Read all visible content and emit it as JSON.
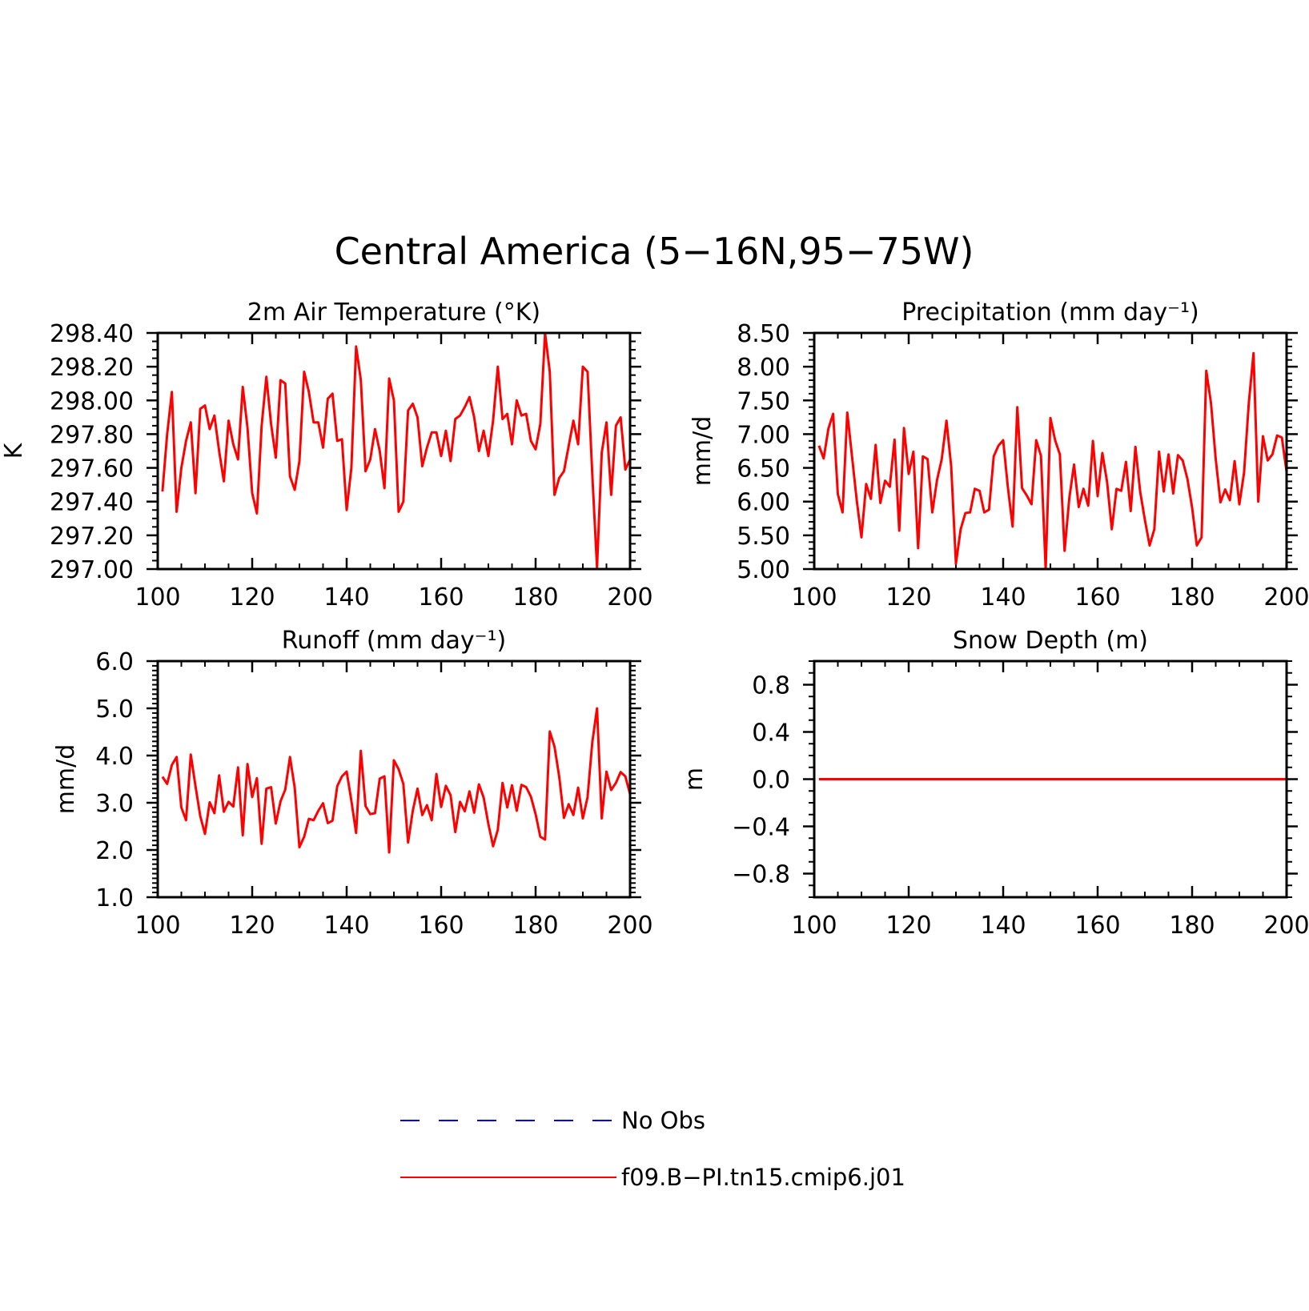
{
  "figure_title": "Central America (5−16N,95−75W)",
  "legend": {
    "placement": "bottom-center",
    "entries": [
      {
        "label": "No Obs",
        "color": "#0000ff",
        "style": "dashed"
      },
      {
        "label": "f09.B−PI.tn15.cmip6.j01",
        "color": "#ff0000",
        "style": "solid"
      }
    ]
  },
  "chart_data": [
    {
      "type": "line",
      "title": "2m Air Temperature (°K)",
      "xlabel": "",
      "ylabel": "K",
      "xlim": [
        100,
        200
      ],
      "ylim": [
        297.0,
        298.4
      ],
      "x_ticks": [
        "100",
        "120",
        "140",
        "160",
        "180",
        "200"
      ],
      "y_ticks": [
        "297.00",
        "297.20",
        "297.40",
        "297.60",
        "297.80",
        "298.00",
        "298.20",
        "298.40"
      ],
      "grid": false,
      "series": [
        {
          "color": "#ff0000",
          "x_start": 101,
          "x_step": 1,
          "values": [
            297.46,
            297.8,
            298.05,
            297.34,
            297.6,
            297.76,
            297.87,
            297.45,
            297.95,
            297.97,
            297.83,
            297.91,
            297.7,
            297.52,
            297.88,
            297.74,
            297.65,
            298.08,
            297.84,
            297.45,
            297.33,
            297.85,
            298.14,
            297.86,
            297.66,
            298.12,
            298.1,
            297.55,
            297.47,
            297.64,
            298.17,
            298.05,
            297.87,
            297.87,
            297.72,
            298.01,
            298.04,
            297.76,
            297.77,
            297.35,
            297.6,
            298.32,
            298.12,
            297.58,
            297.65,
            297.83,
            297.7,
            297.48,
            298.13,
            298.0,
            297.34,
            297.4,
            297.94,
            297.98,
            297.9,
            297.61,
            297.72,
            297.81,
            297.81,
            297.67,
            297.82,
            297.64,
            297.89,
            297.91,
            297.96,
            298.02,
            297.9,
            297.7,
            297.82,
            297.67,
            297.88,
            298.2,
            297.89,
            297.92,
            297.74,
            298.0,
            297.91,
            297.92,
            297.76,
            297.71,
            297.86,
            298.4,
            298.17,
            297.44,
            297.54,
            297.58,
            297.73,
            297.88,
            297.74,
            298.2,
            298.17,
            297.56,
            297.01,
            297.69,
            297.87,
            297.44,
            297.85,
            297.9,
            297.59,
            297.65
          ]
        }
      ]
    },
    {
      "type": "line",
      "title": "Precipitation (mm day⁻¹)",
      "xlabel": "",
      "ylabel": "mm/d",
      "xlim": [
        100,
        200
      ],
      "ylim": [
        5.0,
        8.5
      ],
      "x_ticks": [
        "100",
        "120",
        "140",
        "160",
        "180",
        "200"
      ],
      "y_ticks": [
        "5.00",
        "5.50",
        "6.00",
        "6.50",
        "7.00",
        "7.50",
        "8.00",
        "8.50"
      ],
      "grid": false,
      "series": [
        {
          "color": "#ff0000",
          "x_start": 101,
          "x_step": 1,
          "values": [
            6.83,
            6.64,
            7.08,
            7.3,
            6.11,
            5.84,
            7.32,
            6.67,
            6.02,
            5.47,
            6.26,
            6.04,
            6.84,
            5.98,
            6.31,
            6.22,
            6.92,
            5.57,
            7.09,
            6.41,
            6.74,
            5.31,
            6.67,
            6.63,
            5.84,
            6.32,
            6.63,
            7.2,
            6.52,
            5.08,
            5.59,
            5.83,
            5.84,
            6.19,
            6.16,
            5.84,
            5.88,
            6.67,
            6.83,
            6.91,
            6.21,
            5.63,
            7.4,
            6.2,
            6.09,
            5.96,
            6.91,
            6.68,
            5.0,
            7.24,
            6.91,
            6.7,
            5.27,
            6.05,
            6.55,
            5.92,
            6.19,
            5.94,
            6.9,
            6.08,
            6.72,
            6.29,
            5.59,
            6.19,
            6.16,
            6.59,
            5.86,
            6.81,
            6.15,
            5.73,
            5.35,
            5.59,
            6.74,
            6.15,
            6.7,
            6.12,
            6.69,
            6.61,
            6.34,
            5.91,
            5.35,
            5.47,
            7.94,
            7.46,
            6.63,
            5.99,
            6.18,
            6.02,
            6.6,
            5.96,
            6.43,
            7.46,
            8.2,
            6.0,
            6.97,
            6.61,
            6.7,
            6.98,
            6.95,
            6.44
          ]
        }
      ]
    },
    {
      "type": "line",
      "title": "Runoff (mm day⁻¹)",
      "xlabel": "",
      "ylabel": "mm/d",
      "xlim": [
        100,
        200
      ],
      "ylim": [
        1.0,
        6.0
      ],
      "x_ticks": [
        "100",
        "120",
        "140",
        "160",
        "180",
        "200"
      ],
      "y_ticks": [
        "1.0",
        "2.0",
        "3.0",
        "4.0",
        "5.0",
        "6.0"
      ],
      "grid": false,
      "series": [
        {
          "color": "#ff0000",
          "x_start": 101,
          "x_step": 1,
          "values": [
            3.55,
            3.4,
            3.8,
            3.97,
            2.9,
            2.63,
            4.02,
            3.35,
            2.72,
            2.34,
            3.01,
            2.78,
            3.58,
            2.81,
            3.02,
            2.92,
            3.75,
            2.31,
            3.82,
            3.12,
            3.52,
            2.13,
            3.3,
            3.33,
            2.56,
            3.03,
            3.28,
            3.97,
            3.32,
            2.06,
            2.28,
            2.66,
            2.63,
            2.83,
            2.99,
            2.57,
            2.62,
            3.35,
            3.56,
            3.66,
            3.04,
            2.36,
            4.1,
            2.93,
            2.76,
            2.78,
            3.51,
            3.56,
            1.95,
            3.9,
            3.71,
            3.4,
            2.16,
            2.83,
            3.3,
            2.74,
            2.95,
            2.63,
            3.61,
            2.91,
            3.36,
            3.16,
            2.38,
            3.02,
            2.82,
            3.24,
            2.79,
            3.39,
            3.11,
            2.55,
            2.08,
            2.43,
            3.42,
            2.9,
            3.37,
            2.83,
            3.38,
            3.33,
            3.13,
            2.76,
            2.28,
            2.22,
            4.51,
            4.19,
            3.55,
            2.68,
            2.97,
            2.74,
            3.32,
            2.67,
            3.12,
            4.28,
            5.0,
            2.67,
            3.66,
            3.27,
            3.42,
            3.65,
            3.56,
            3.18
          ]
        }
      ]
    },
    {
      "type": "line",
      "title": "Snow Depth (m)",
      "xlabel": "",
      "ylabel": "m",
      "xlim": [
        100,
        200
      ],
      "ylim": [
        -1.0,
        1.0
      ],
      "x_ticks": [
        "100",
        "120",
        "140",
        "160",
        "180",
        "200"
      ],
      "y_ticks": [
        "−0.8",
        "−0.4",
        "0.0",
        "0.4",
        "0.8"
      ],
      "grid": false,
      "series": [
        {
          "color": "#ff0000",
          "x_start": 101,
          "x_step": 1,
          "constant": 0.0,
          "count": 100
        }
      ]
    }
  ]
}
